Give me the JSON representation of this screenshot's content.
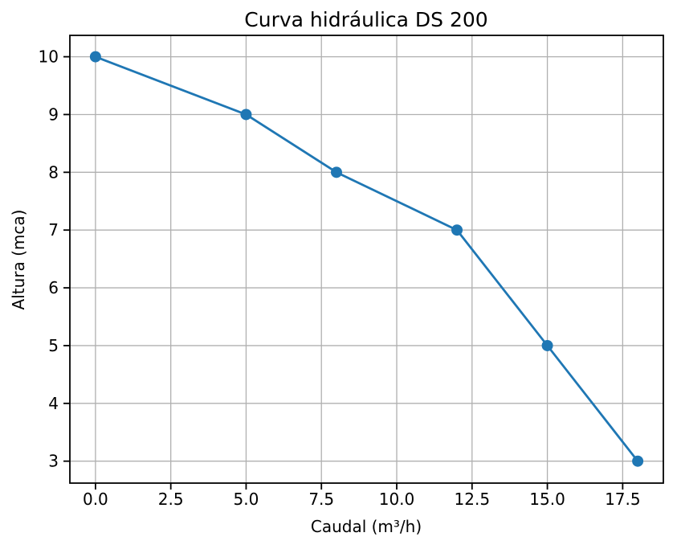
{
  "chart_data": {
    "type": "line",
    "title": "Curva hidráulica DS 200",
    "xlabel": "Caudal (m³/h)",
    "ylabel": "Altura (mca)",
    "x": [
      0,
      5,
      8,
      12,
      15,
      18
    ],
    "y": [
      10,
      9,
      8,
      7,
      5,
      3
    ],
    "xticks": [
      {
        "value": 0,
        "label": "0.0"
      },
      {
        "value": 2.5,
        "label": "2.5"
      },
      {
        "value": 5,
        "label": "5.0"
      },
      {
        "value": 7.5,
        "label": "7.5"
      },
      {
        "value": 10,
        "label": "10.0"
      },
      {
        "value": 12.5,
        "label": "12.5"
      },
      {
        "value": 15,
        "label": "15.0"
      },
      {
        "value": 17.5,
        "label": "17.5"
      }
    ],
    "yticks": [
      {
        "value": 3,
        "label": "3"
      },
      {
        "value": 4,
        "label": "4"
      },
      {
        "value": 5,
        "label": "5"
      },
      {
        "value": 6,
        "label": "6"
      },
      {
        "value": 7,
        "label": "7"
      },
      {
        "value": 8,
        "label": "8"
      },
      {
        "value": 9,
        "label": "9"
      },
      {
        "value": 10,
        "label": "10"
      }
    ],
    "xlim": [
      -0.85,
      18.85
    ],
    "ylim": [
      2.62,
      10.37
    ],
    "grid": true,
    "legend": "none",
    "marker": "circle",
    "style": {
      "line_color": "#1f77b4",
      "marker_color": "#1f77b4",
      "grid_color": "#b0b0b0",
      "spine_color": "#000000",
      "tick_color": "#000000",
      "text_color": "#000000",
      "background": "#ffffff"
    }
  }
}
